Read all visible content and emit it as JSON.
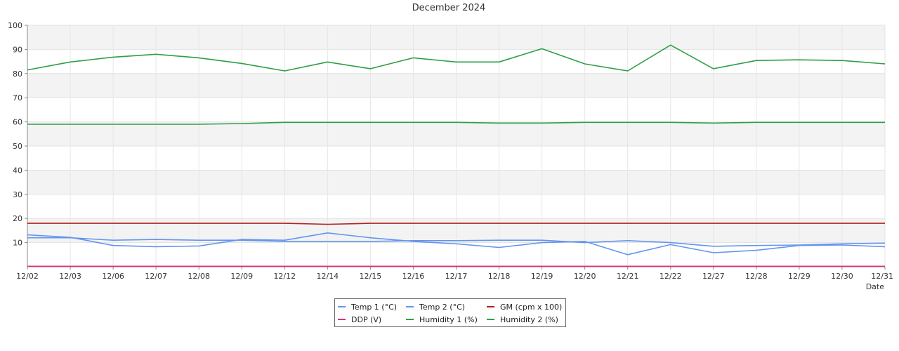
{
  "chart_data": {
    "type": "line",
    "title": "December 2024",
    "xlabel": "Date",
    "ylabel": "",
    "ylim": [
      0,
      100
    ],
    "yticks": [
      10,
      20,
      30,
      40,
      50,
      60,
      70,
      80,
      90,
      100
    ],
    "grid": true,
    "legend_position": "bottom-center",
    "categories": [
      "12/02",
      "12/03",
      "12/06",
      "12/07",
      "12/08",
      "12/09",
      "12/12",
      "12/14",
      "12/15",
      "12/16",
      "12/17",
      "12/18",
      "12/19",
      "12/20",
      "12/21",
      "12/22",
      "12/27",
      "12/28",
      "12/29",
      "12/30",
      "12/31"
    ],
    "series": [
      {
        "name": "Temp 1 (°C)",
        "color": "#6495ed",
        "values": [
          12.0,
          12.0,
          11.0,
          11.3,
          11.0,
          11.0,
          10.5,
          10.5,
          10.5,
          10.8,
          10.8,
          11.0,
          11.0,
          10.0,
          10.8,
          10.0,
          8.5,
          8.8,
          9.0,
          9.5,
          9.8
        ]
      },
      {
        "name": "Temp 2 (°C)",
        "color": "#6495ed",
        "values": [
          13.2,
          12.2,
          8.8,
          8.3,
          8.6,
          11.3,
          11.0,
          14.0,
          12.0,
          10.5,
          9.5,
          8.0,
          10.0,
          10.5,
          5.0,
          9.2,
          5.8,
          6.8,
          8.8,
          9.0,
          8.3
        ]
      },
      {
        "name": "GM (cpm x 100)",
        "color": "#b22222",
        "values": [
          18,
          18,
          18,
          18,
          18,
          18,
          18,
          17.6,
          18,
          18,
          18,
          18,
          18,
          18,
          18,
          18,
          18,
          18,
          18,
          18,
          18
        ]
      },
      {
        "name": "DDP (V)",
        "color": "#e0307a",
        "values": [
          0.2,
          0.2,
          0.2,
          0.2,
          0.2,
          0.2,
          0.2,
          0.2,
          0.2,
          0.2,
          0.2,
          0.2,
          0.2,
          0.2,
          0.2,
          0.2,
          0.2,
          0.2,
          0.2,
          0.2,
          0.2
        ]
      },
      {
        "name": "Humidity 1 (%)",
        "color": "#2e9e47",
        "values": [
          81.5,
          84.8,
          86.8,
          88.0,
          86.5,
          84.2,
          81.1,
          84.8,
          82.0,
          86.5,
          84.8,
          84.8,
          90.3,
          84.0,
          81.1,
          91.8,
          82.0,
          85.4,
          85.7,
          85.4,
          84.0
        ]
      },
      {
        "name": "Humidity 2 (%)",
        "color": "#2e9e47",
        "values": [
          59.0,
          59.0,
          59.0,
          59.0,
          59.0,
          59.3,
          59.8,
          59.8,
          59.8,
          59.8,
          59.8,
          59.5,
          59.5,
          59.8,
          59.8,
          59.8,
          59.5,
          59.8,
          59.8,
          59.8,
          59.8
        ]
      }
    ]
  }
}
